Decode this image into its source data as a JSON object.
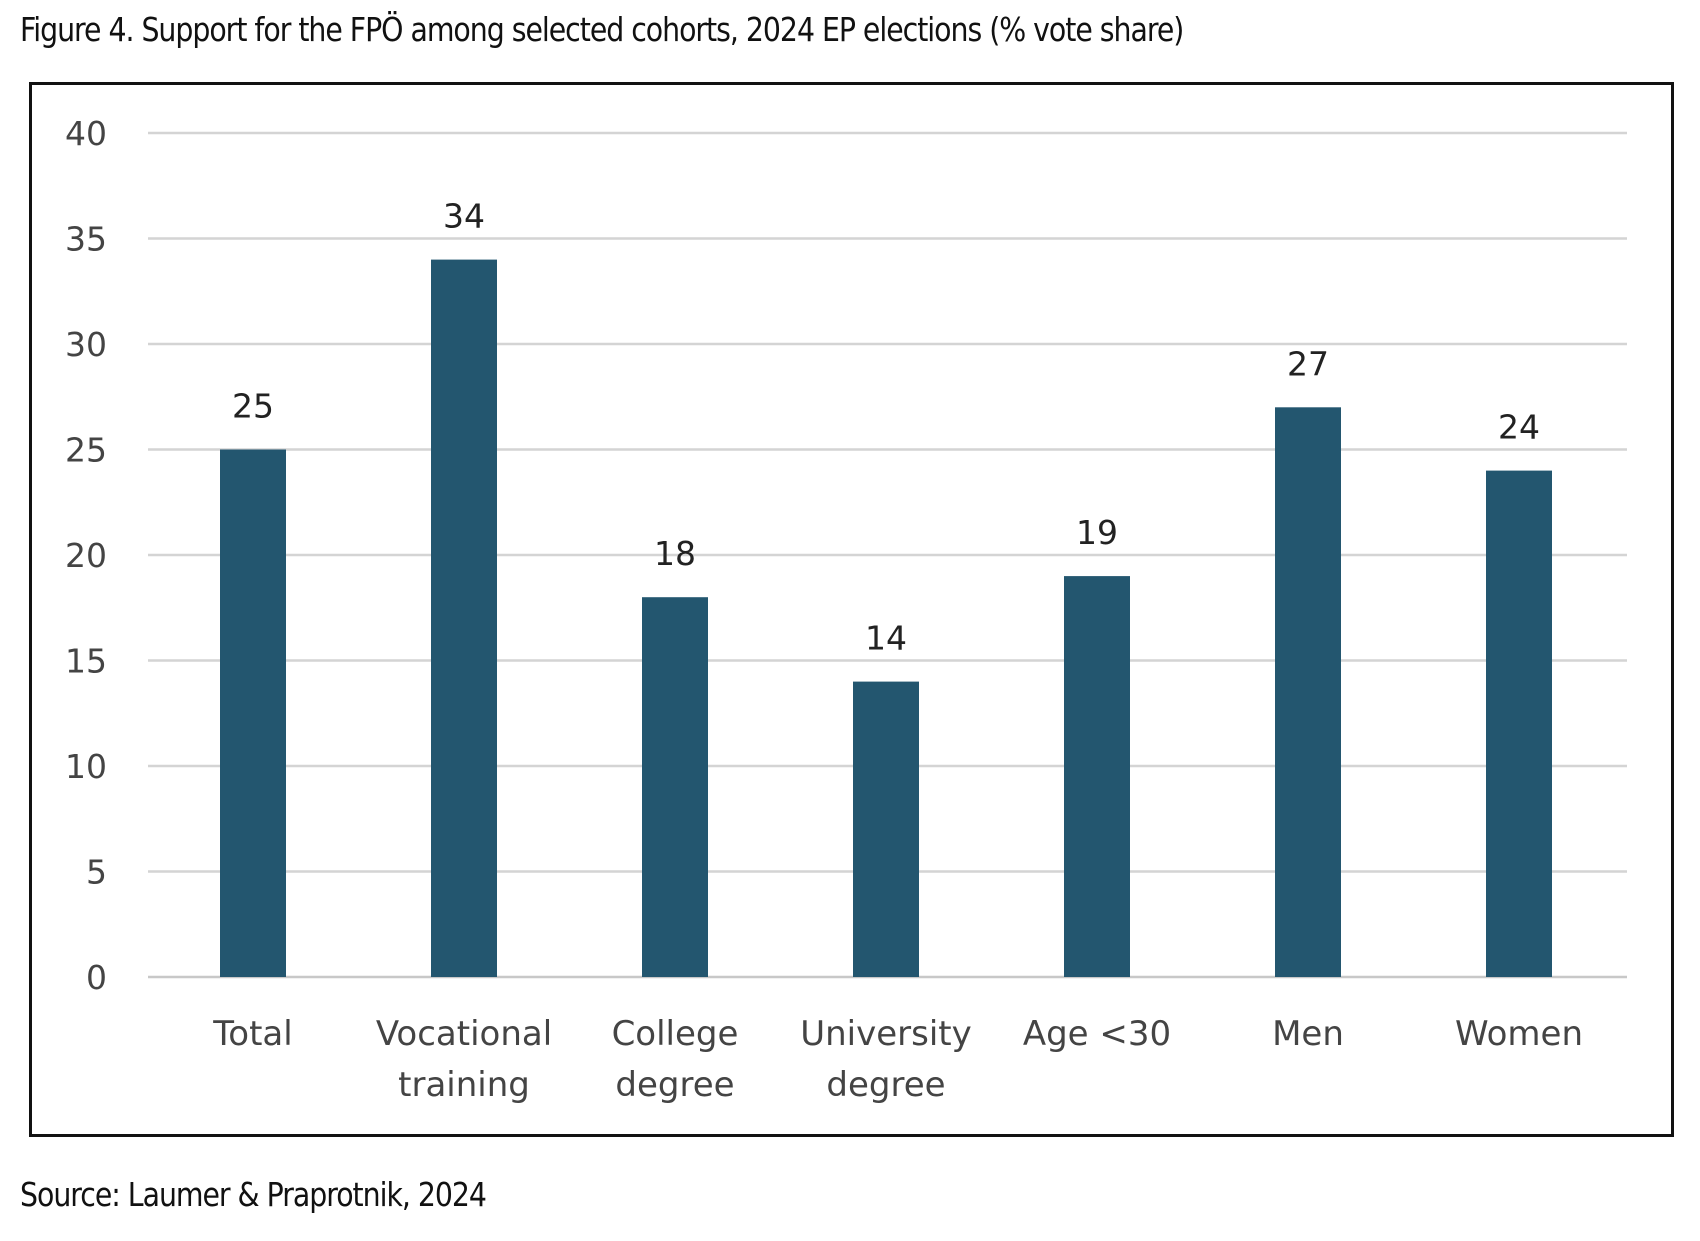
{
  "figure": {
    "title": "Figure 4. Support for the FPÖ among selected cohorts, 2024 EP elections (% vote share)",
    "source": "Source: Laumer & Praprotnik, 2024"
  },
  "chart_data": {
    "type": "bar",
    "title": "",
    "xlabel": "",
    "ylabel": "",
    "categories": [
      [
        "Total"
      ],
      [
        "Vocational",
        "training"
      ],
      [
        "College",
        "degree"
      ],
      [
        "University",
        "degree"
      ],
      [
        "Age  <30"
      ],
      [
        "Men"
      ],
      [
        "Women"
      ]
    ],
    "values": [
      25,
      34,
      18,
      14,
      19,
      27,
      24
    ],
    "data_labels": [
      "25",
      "34",
      "18",
      "14",
      "19",
      "27",
      "24"
    ],
    "ylim": [
      0,
      40
    ],
    "yticks": [
      0,
      5,
      10,
      15,
      20,
      25,
      30,
      35,
      40
    ],
    "grid": true,
    "legend": "none",
    "colors": {
      "bar": "#23566f",
      "grid": "#d4d4d4",
      "axis": "#c8c8c8"
    }
  }
}
